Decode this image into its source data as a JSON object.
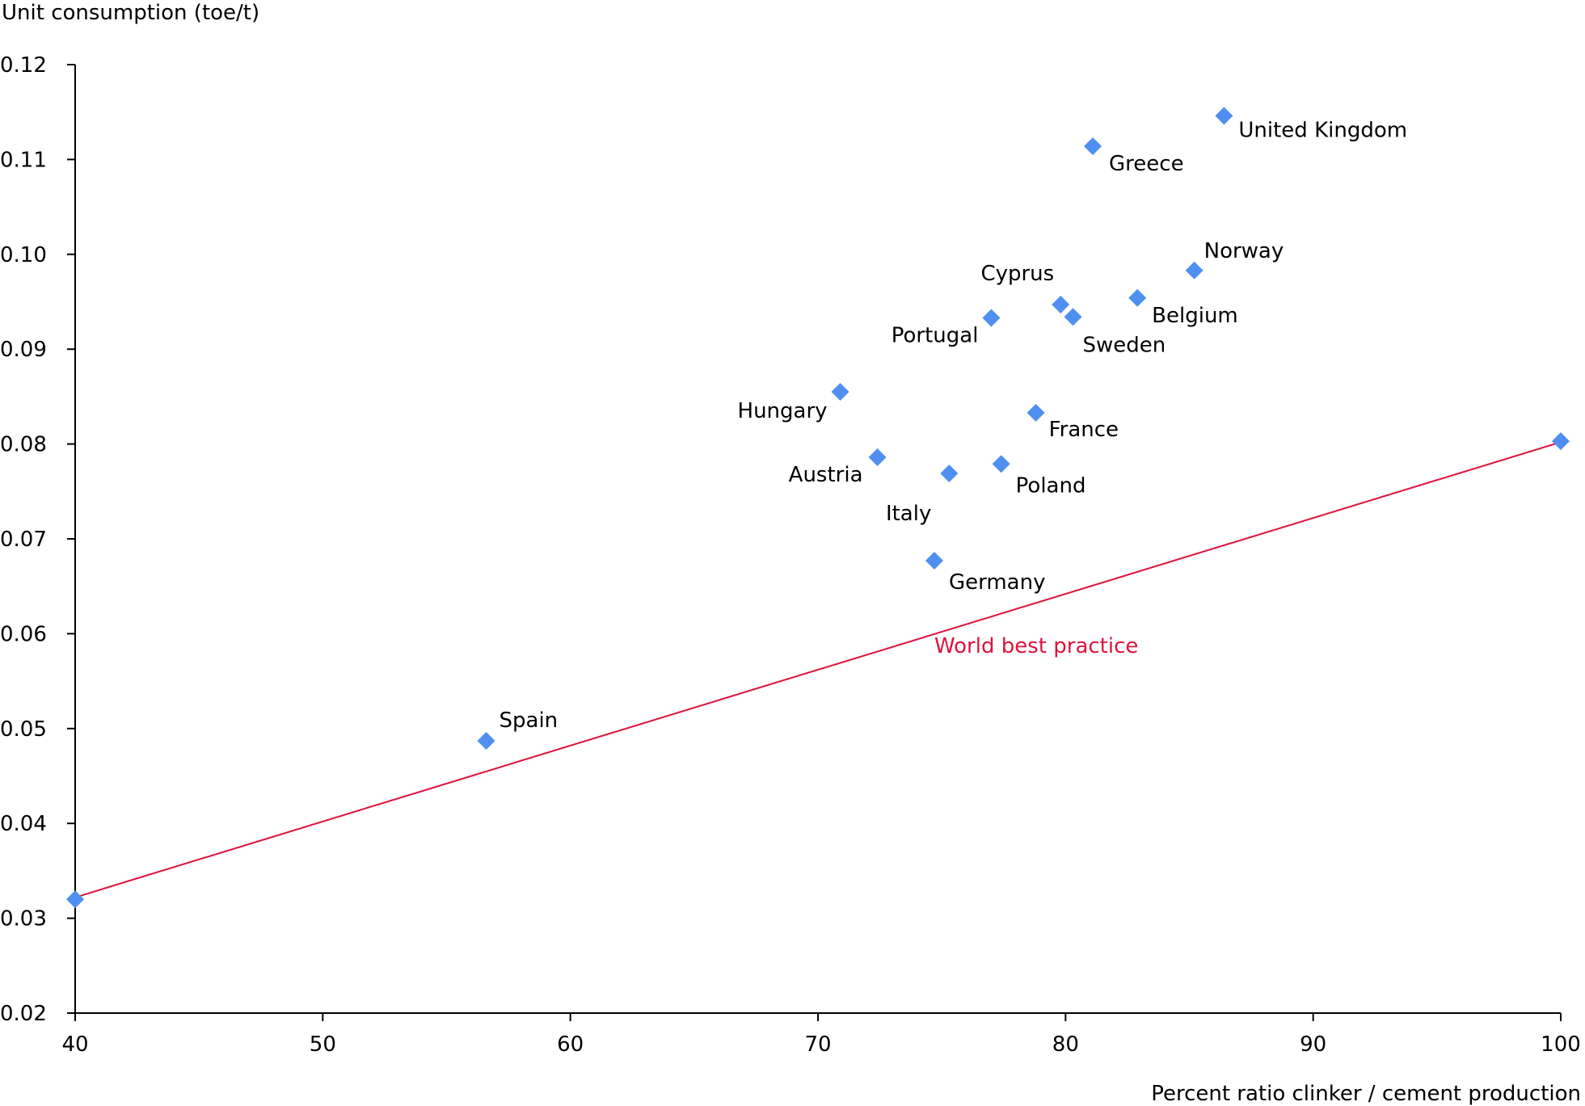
{
  "chart_data": {
    "type": "scatter",
    "ylabel": "Unit consumption (toe/t)",
    "xlabel": "Percent ratio clinker / cement production",
    "xlim": [
      40,
      100
    ],
    "ylim": [
      0.02,
      0.12
    ],
    "x_ticks": [
      "40",
      "50",
      "60",
      "70",
      "80",
      "90",
      "100"
    ],
    "y_ticks": [
      "0.02",
      "0.03",
      "0.04",
      "0.05",
      "0.06",
      "0.07",
      "0.08",
      "0.09",
      "0.10",
      "0.11",
      "0.12"
    ],
    "grid": false,
    "point_color": "#4f8ff0",
    "points": [
      {
        "label": "United Kingdom",
        "x": 86.4,
        "y": 0.1146
      },
      {
        "label": "Greece",
        "x": 81.1,
        "y": 0.1114
      },
      {
        "label": "Norway",
        "x": 85.2,
        "y": 0.0983
      },
      {
        "label": "Cyprus",
        "x": 79.8,
        "y": 0.0947
      },
      {
        "label": "Belgium",
        "x": 82.9,
        "y": 0.0954
      },
      {
        "label": "Sweden",
        "x": 80.3,
        "y": 0.0934
      },
      {
        "label": "Portugal",
        "x": 77.0,
        "y": 0.0933
      },
      {
        "label": "Hungary",
        "x": 70.9,
        "y": 0.0855
      },
      {
        "label": "France",
        "x": 78.8,
        "y": 0.0833
      },
      {
        "label": "Austria",
        "x": 72.4,
        "y": 0.0786
      },
      {
        "label": "Italy",
        "x": 75.3,
        "y": 0.0769
      },
      {
        "label": "Poland",
        "x": 77.4,
        "y": 0.0779
      },
      {
        "label": "Germany",
        "x": 74.7,
        "y": 0.0677
      },
      {
        "label": "Spain",
        "x": 56.6,
        "y": 0.0487
      },
      {
        "label": "",
        "x": 40.0,
        "y": 0.032
      },
      {
        "label": "",
        "x": 100.0,
        "y": 0.0803
      }
    ],
    "reference_line": {
      "label": "World best practice",
      "color": "#dc143c",
      "x": [
        40,
        100
      ],
      "y": [
        0.0322,
        0.0802
      ]
    }
  }
}
